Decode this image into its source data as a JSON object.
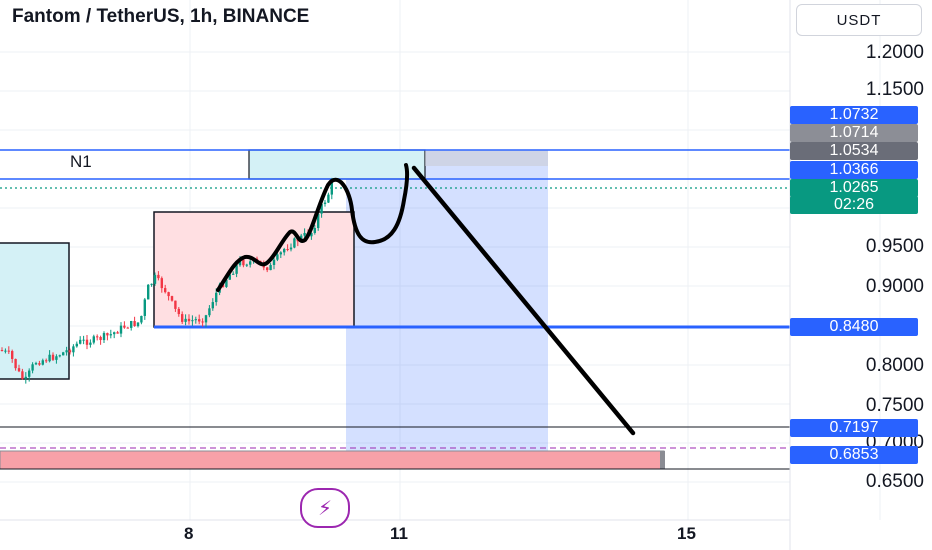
{
  "header": {
    "title": "Fantom / TetherUS, 1h, BINANCE",
    "currency": "USDT"
  },
  "price_ticks": [
    "1.2000",
    "1.1500",
    "0.9500",
    "0.9000",
    "0.8000",
    "0.7500",
    "0.7000",
    "0.6500"
  ],
  "price_tags": [
    {
      "label": "1.0732",
      "price": 1.0732,
      "style": "blue"
    },
    {
      "label": "1.0714",
      "price": 1.0714,
      "style": "gray"
    },
    {
      "label": "1.0534",
      "price": 1.0534,
      "style": "dgray"
    },
    {
      "label": "1.0366",
      "price": 1.0366,
      "style": "blue"
    },
    {
      "label": "1.0265",
      "price": 1.0265,
      "style": "green"
    },
    {
      "label": "02:26",
      "price": 1.0125,
      "style": "green"
    },
    {
      "label": "0.8480",
      "price": 0.848,
      "style": "blue"
    },
    {
      "label": "0.7197",
      "price": 0.7197,
      "style": "blue"
    },
    {
      "label": "0.6853",
      "price": 0.6853,
      "style": "blue"
    }
  ],
  "time_labels": [
    "8",
    "11",
    "15"
  ],
  "annotations": {
    "zone_label": "N1"
  },
  "colors": {
    "up": "#089981",
    "down": "#f23645",
    "accent": "#2962ff",
    "long_zone": "#d6e0ff",
    "supply_zone": "#ffd6d9",
    "demand_zone": "#d4f1f6",
    "drawing": "#000000"
  },
  "chart_data": {
    "type": "candlestick",
    "symbol": "Fantom / TetherUS",
    "interval": "1h",
    "exchange": "BINANCE",
    "y_range": [
      0.63,
      1.23
    ],
    "last_price": 1.0265,
    "countdown": "02:26",
    "levels": [
      1.0732,
      1.0714,
      1.0534,
      1.0366,
      1.0265,
      0.848,
      0.7197,
      0.6853
    ],
    "x_tick_labels": [
      "8",
      "11",
      "15"
    ]
  }
}
